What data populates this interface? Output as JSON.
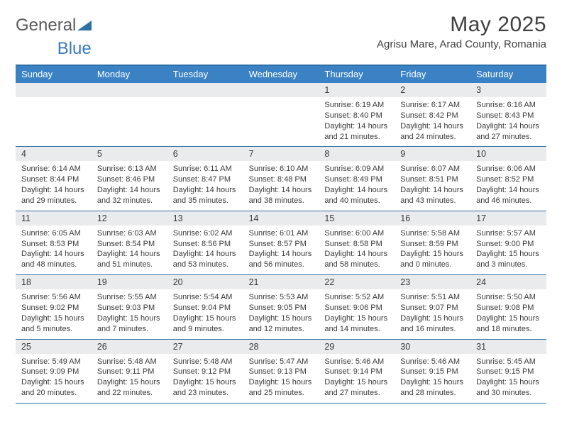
{
  "logo": {
    "word1": "General",
    "word2": "Blue",
    "triangle_color": "#2f6fa8"
  },
  "header": {
    "title": "May 2025",
    "location": "Agrisu Mare, Arad County, Romania"
  },
  "colors": {
    "header_bg": "#3a82c4",
    "header_text": "#ffffff",
    "row_border": "#2f6fa8",
    "daynum_bg": "#e9ebed",
    "text_color": "#3a3a3a",
    "page_bg": "#ffffff"
  },
  "day_names": [
    "Sunday",
    "Monday",
    "Tuesday",
    "Wednesday",
    "Thursday",
    "Friday",
    "Saturday"
  ],
  "weeks": [
    [
      {
        "blank": true
      },
      {
        "blank": true
      },
      {
        "blank": true
      },
      {
        "blank": true
      },
      {
        "day": "1",
        "sunrise": "Sunrise: 6:19 AM",
        "sunset": "Sunset: 8:40 PM",
        "daylight": "Daylight: 14 hours and 21 minutes."
      },
      {
        "day": "2",
        "sunrise": "Sunrise: 6:17 AM",
        "sunset": "Sunset: 8:42 PM",
        "daylight": "Daylight: 14 hours and 24 minutes."
      },
      {
        "day": "3",
        "sunrise": "Sunrise: 6:16 AM",
        "sunset": "Sunset: 8:43 PM",
        "daylight": "Daylight: 14 hours and 27 minutes."
      }
    ],
    [
      {
        "day": "4",
        "sunrise": "Sunrise: 6:14 AM",
        "sunset": "Sunset: 8:44 PM",
        "daylight": "Daylight: 14 hours and 29 minutes."
      },
      {
        "day": "5",
        "sunrise": "Sunrise: 6:13 AM",
        "sunset": "Sunset: 8:46 PM",
        "daylight": "Daylight: 14 hours and 32 minutes."
      },
      {
        "day": "6",
        "sunrise": "Sunrise: 6:11 AM",
        "sunset": "Sunset: 8:47 PM",
        "daylight": "Daylight: 14 hours and 35 minutes."
      },
      {
        "day": "7",
        "sunrise": "Sunrise: 6:10 AM",
        "sunset": "Sunset: 8:48 PM",
        "daylight": "Daylight: 14 hours and 38 minutes."
      },
      {
        "day": "8",
        "sunrise": "Sunrise: 6:09 AM",
        "sunset": "Sunset: 8:49 PM",
        "daylight": "Daylight: 14 hours and 40 minutes."
      },
      {
        "day": "9",
        "sunrise": "Sunrise: 6:07 AM",
        "sunset": "Sunset: 8:51 PM",
        "daylight": "Daylight: 14 hours and 43 minutes."
      },
      {
        "day": "10",
        "sunrise": "Sunrise: 6:06 AM",
        "sunset": "Sunset: 8:52 PM",
        "daylight": "Daylight: 14 hours and 46 minutes."
      }
    ],
    [
      {
        "day": "11",
        "sunrise": "Sunrise: 6:05 AM",
        "sunset": "Sunset: 8:53 PM",
        "daylight": "Daylight: 14 hours and 48 minutes."
      },
      {
        "day": "12",
        "sunrise": "Sunrise: 6:03 AM",
        "sunset": "Sunset: 8:54 PM",
        "daylight": "Daylight: 14 hours and 51 minutes."
      },
      {
        "day": "13",
        "sunrise": "Sunrise: 6:02 AM",
        "sunset": "Sunset: 8:56 PM",
        "daylight": "Daylight: 14 hours and 53 minutes."
      },
      {
        "day": "14",
        "sunrise": "Sunrise: 6:01 AM",
        "sunset": "Sunset: 8:57 PM",
        "daylight": "Daylight: 14 hours and 56 minutes."
      },
      {
        "day": "15",
        "sunrise": "Sunrise: 6:00 AM",
        "sunset": "Sunset: 8:58 PM",
        "daylight": "Daylight: 14 hours and 58 minutes."
      },
      {
        "day": "16",
        "sunrise": "Sunrise: 5:58 AM",
        "sunset": "Sunset: 8:59 PM",
        "daylight": "Daylight: 15 hours and 0 minutes."
      },
      {
        "day": "17",
        "sunrise": "Sunrise: 5:57 AM",
        "sunset": "Sunset: 9:00 PM",
        "daylight": "Daylight: 15 hours and 3 minutes."
      }
    ],
    [
      {
        "day": "18",
        "sunrise": "Sunrise: 5:56 AM",
        "sunset": "Sunset: 9:02 PM",
        "daylight": "Daylight: 15 hours and 5 minutes."
      },
      {
        "day": "19",
        "sunrise": "Sunrise: 5:55 AM",
        "sunset": "Sunset: 9:03 PM",
        "daylight": "Daylight: 15 hours and 7 minutes."
      },
      {
        "day": "20",
        "sunrise": "Sunrise: 5:54 AM",
        "sunset": "Sunset: 9:04 PM",
        "daylight": "Daylight: 15 hours and 9 minutes."
      },
      {
        "day": "21",
        "sunrise": "Sunrise: 5:53 AM",
        "sunset": "Sunset: 9:05 PM",
        "daylight": "Daylight: 15 hours and 12 minutes."
      },
      {
        "day": "22",
        "sunrise": "Sunrise: 5:52 AM",
        "sunset": "Sunset: 9:06 PM",
        "daylight": "Daylight: 15 hours and 14 minutes."
      },
      {
        "day": "23",
        "sunrise": "Sunrise: 5:51 AM",
        "sunset": "Sunset: 9:07 PM",
        "daylight": "Daylight: 15 hours and 16 minutes."
      },
      {
        "day": "24",
        "sunrise": "Sunrise: 5:50 AM",
        "sunset": "Sunset: 9:08 PM",
        "daylight": "Daylight: 15 hours and 18 minutes."
      }
    ],
    [
      {
        "day": "25",
        "sunrise": "Sunrise: 5:49 AM",
        "sunset": "Sunset: 9:09 PM",
        "daylight": "Daylight: 15 hours and 20 minutes."
      },
      {
        "day": "26",
        "sunrise": "Sunrise: 5:48 AM",
        "sunset": "Sunset: 9:11 PM",
        "daylight": "Daylight: 15 hours and 22 minutes."
      },
      {
        "day": "27",
        "sunrise": "Sunrise: 5:48 AM",
        "sunset": "Sunset: 9:12 PM",
        "daylight": "Daylight: 15 hours and 23 minutes."
      },
      {
        "day": "28",
        "sunrise": "Sunrise: 5:47 AM",
        "sunset": "Sunset: 9:13 PM",
        "daylight": "Daylight: 15 hours and 25 minutes."
      },
      {
        "day": "29",
        "sunrise": "Sunrise: 5:46 AM",
        "sunset": "Sunset: 9:14 PM",
        "daylight": "Daylight: 15 hours and 27 minutes."
      },
      {
        "day": "30",
        "sunrise": "Sunrise: 5:46 AM",
        "sunset": "Sunset: 9:15 PM",
        "daylight": "Daylight: 15 hours and 28 minutes."
      },
      {
        "day": "31",
        "sunrise": "Sunrise: 5:45 AM",
        "sunset": "Sunset: 9:15 PM",
        "daylight": "Daylight: 15 hours and 30 minutes."
      }
    ]
  ]
}
